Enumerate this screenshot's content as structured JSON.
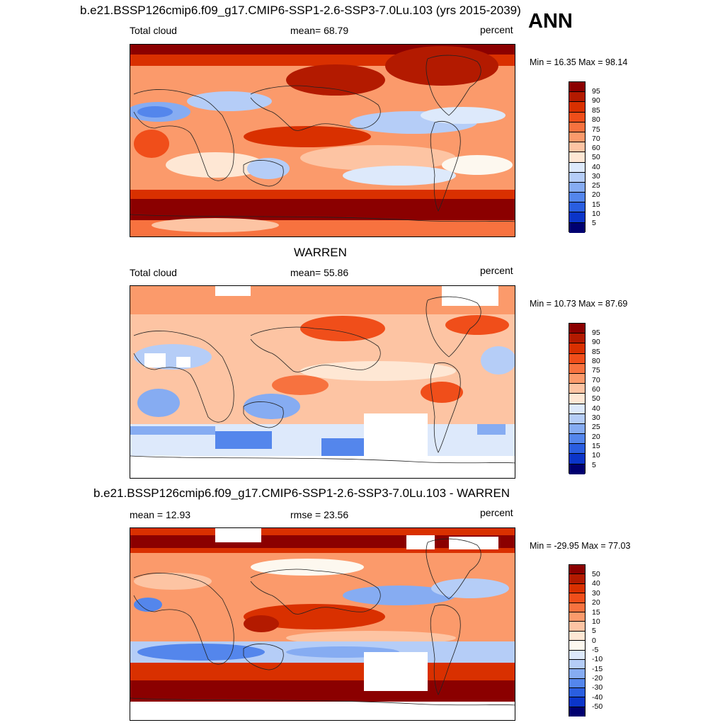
{
  "header": {
    "title": "b.e21.BSSP126cmip6.f09_g17.CMIP6-SSP1-2.6-SSP3-7.0Lu.103 (yrs 2015-2039)",
    "season": "ANN"
  },
  "panels": [
    {
      "title": "",
      "left_label": "Total cloud",
      "center_label": "mean=  68.79",
      "units": "percent",
      "minmax": "Min =  16.35 Max =  98.14",
      "levels": [
        "95",
        "90",
        "85",
        "80",
        "75",
        "70",
        "60",
        "50",
        "40",
        "30",
        "25",
        "20",
        "15",
        "10",
        "5"
      ]
    },
    {
      "title": "WARREN",
      "left_label": "Total cloud",
      "center_label": "mean=  55.86",
      "units": "percent",
      "minmax": "Min =  10.73 Max =  87.69",
      "levels": [
        "95",
        "90",
        "85",
        "80",
        "75",
        "70",
        "60",
        "50",
        "40",
        "30",
        "25",
        "20",
        "15",
        "10",
        "5"
      ]
    },
    {
      "title": "b.e21.BSSP126cmip6.f09_g17.CMIP6-SSP1-2.6-SSP3-7.0Lu.103 - WARREN",
      "left_label": "mean =  12.93",
      "center_label": "rmse =  23.56",
      "units": "percent",
      "minmax": "Min = -29.95 Max =  77.03",
      "levels": [
        "50",
        "40",
        "30",
        "20",
        "15",
        "10",
        "5",
        "0",
        "-5",
        "-10",
        "-15",
        "-20",
        "-30",
        "-40",
        "-50"
      ]
    }
  ],
  "colors": {
    "abs_scale": [
      "#8b0000",
      "#b31a00",
      "#d93000",
      "#f04e1a",
      "#f7723f",
      "#fb9a6b",
      "#fdc4a3",
      "#fee7d4",
      "#fdf8ef",
      "#dde9fb",
      "#b5cdf7",
      "#86acf2",
      "#5486ec",
      "#2a5ee0",
      "#0b35c9",
      "#000c9c",
      "#000070"
    ],
    "diff_scale": [
      "#8b0000",
      "#b31a00",
      "#d93000",
      "#f04e1a",
      "#f7723f",
      "#fb9a6b",
      "#fdc4a3",
      "#fee7d4",
      "#fdf8ef",
      "#dde9fb",
      "#b5cdf7",
      "#86acf2",
      "#5486ec",
      "#2a5ee0",
      "#0b35c9",
      "#000c9c",
      "#000070"
    ]
  }
}
